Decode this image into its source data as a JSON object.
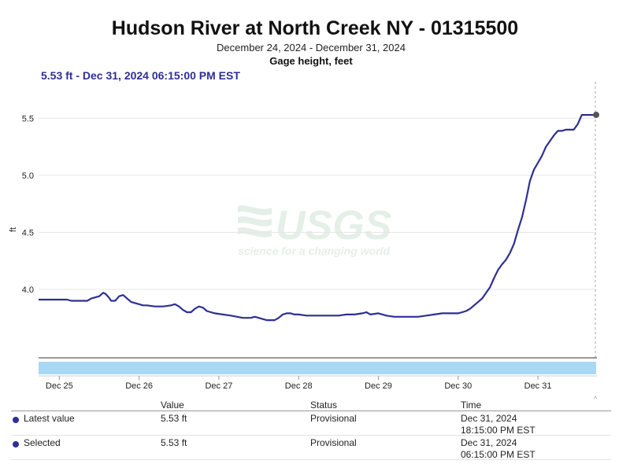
{
  "header": {
    "title": "Hudson River at North Creek NY - 01315500",
    "date_range": "December 24, 2024 - December 31, 2024",
    "parameter": "Gage height, feet",
    "selected_readout": "5.53 ft - Dec 31, 2024 06:15:00 PM EST"
  },
  "watermark": {
    "brand": "USGS",
    "tagline": "science for a changing world"
  },
  "colors": {
    "series": "#2e2f93",
    "grid": "#e6e6e6",
    "navigator": "#a9d8f5"
  },
  "chart_data": {
    "type": "line",
    "title": "Hudson River at North Creek NY - 01315500",
    "ylabel": "ft",
    "xlabel": "",
    "ylim": [
      3.4,
      5.82
    ],
    "xlim": [
      24.74,
      31.73
    ],
    "yticks": [
      {
        "value": 4.0,
        "label": "4.0"
      },
      {
        "value": 4.5,
        "label": "4.5"
      },
      {
        "value": 5.0,
        "label": "5.0"
      },
      {
        "value": 5.5,
        "label": "5.5"
      }
    ],
    "xticks": [
      {
        "value": 25,
        "label": "Dec 25"
      },
      {
        "value": 26,
        "label": "Dec 26"
      },
      {
        "value": 27,
        "label": "Dec 27"
      },
      {
        "value": 28,
        "label": "Dec 28"
      },
      {
        "value": 29,
        "label": "Dec 29"
      },
      {
        "value": 30,
        "label": "Dec 30"
      },
      {
        "value": 31,
        "label": "Dec 31"
      }
    ],
    "series": [
      {
        "name": "Gage height",
        "x": [
          24.74,
          25.1,
          25.15,
          25.35,
          25.4,
          25.5,
          25.55,
          25.58,
          25.62,
          25.65,
          25.7,
          25.75,
          25.8,
          25.85,
          25.9,
          25.95,
          26.0,
          26.05,
          26.1,
          26.2,
          26.3,
          26.4,
          26.45,
          26.5,
          26.55,
          26.6,
          26.65,
          26.7,
          26.75,
          26.8,
          26.85,
          26.9,
          26.95,
          27.05,
          27.15,
          27.3,
          27.4,
          27.45,
          27.5,
          27.55,
          27.6,
          27.7,
          27.75,
          27.8,
          27.85,
          27.9,
          27.95,
          28.0,
          28.1,
          28.2,
          28.5,
          28.6,
          28.7,
          28.8,
          28.85,
          28.9,
          29.0,
          29.1,
          29.2,
          29.3,
          29.5,
          29.6,
          29.7,
          29.8,
          29.9,
          30.0,
          30.05,
          30.1,
          30.15,
          30.2,
          30.3,
          30.4,
          30.45,
          30.5,
          30.55,
          30.6,
          30.65,
          30.7,
          30.75,
          30.8,
          30.85,
          30.9,
          30.95,
          31.0,
          31.05,
          31.1,
          31.15,
          31.2,
          31.25,
          31.3,
          31.35,
          31.45,
          31.5,
          31.55,
          31.6,
          31.65,
          31.73
        ],
        "values": [
          3.91,
          3.91,
          3.9,
          3.9,
          3.92,
          3.94,
          3.97,
          3.96,
          3.93,
          3.9,
          3.9,
          3.94,
          3.95,
          3.92,
          3.89,
          3.88,
          3.87,
          3.86,
          3.86,
          3.85,
          3.85,
          3.86,
          3.87,
          3.85,
          3.82,
          3.8,
          3.8,
          3.83,
          3.85,
          3.84,
          3.81,
          3.8,
          3.79,
          3.78,
          3.77,
          3.75,
          3.75,
          3.76,
          3.75,
          3.74,
          3.73,
          3.73,
          3.75,
          3.78,
          3.79,
          3.79,
          3.78,
          3.78,
          3.77,
          3.77,
          3.77,
          3.78,
          3.78,
          3.79,
          3.8,
          3.78,
          3.79,
          3.77,
          3.76,
          3.76,
          3.76,
          3.77,
          3.78,
          3.79,
          3.79,
          3.79,
          3.8,
          3.81,
          3.83,
          3.86,
          3.92,
          4.02,
          4.1,
          4.17,
          4.22,
          4.26,
          4.32,
          4.4,
          4.52,
          4.63,
          4.78,
          4.95,
          5.05,
          5.11,
          5.17,
          5.25,
          5.3,
          5.35,
          5.39,
          5.39,
          5.4,
          5.4,
          5.45,
          5.53,
          5.53,
          5.53,
          5.53
        ]
      }
    ],
    "markers": [
      {
        "x": 31.73,
        "y": 5.53,
        "label": "Selected"
      }
    ]
  },
  "legend": {
    "headers": {
      "value": "Value",
      "status": "Status",
      "time": "Time"
    },
    "rows": [
      {
        "name": "Latest value",
        "value": "5.53 ft",
        "status": "Provisional",
        "date": "Dec 31, 2024",
        "time": "18:15:00 PM EST"
      },
      {
        "name": "Selected",
        "value": "5.53 ft",
        "status": "Provisional",
        "date": "Dec 31, 2024",
        "time": "06:15:00 PM EST"
      }
    ]
  }
}
